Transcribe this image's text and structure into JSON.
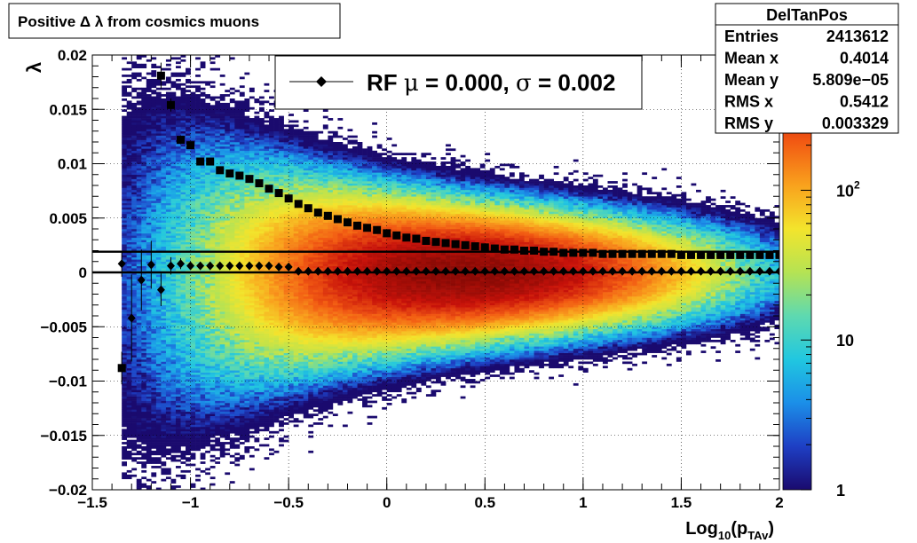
{
  "chart_data": {
    "type": "heatmap",
    "title": "Positive Δ λ from cosmics muons",
    "xlabel": "Log",
    "xlabel_sub1": "10",
    "xlabel_mid": "(p",
    "xlabel_sub2": "TAv",
    "xlabel_end": ")",
    "ylabel": "λ",
    "xlim": [
      -1.5,
      2.0
    ],
    "ylim": [
      -0.02,
      0.02
    ],
    "grid": true,
    "x_ticks": [
      {
        "v": -1.5,
        "label": "−1.5"
      },
      {
        "v": -1.0,
        "label": "−1"
      },
      {
        "v": -0.5,
        "label": "−0.5"
      },
      {
        "v": 0.0,
        "label": "0"
      },
      {
        "v": 0.5,
        "label": "0.5"
      },
      {
        "v": 1.0,
        "label": "1"
      },
      {
        "v": 1.5,
        "label": "1.5"
      },
      {
        "v": 2.0,
        "label": "2"
      }
    ],
    "y_ticks": [
      {
        "v": 0.02,
        "label": "0.02"
      },
      {
        "v": 0.015,
        "label": "0.015"
      },
      {
        "v": 0.01,
        "label": "0.01"
      },
      {
        "v": 0.005,
        "label": "0.005"
      },
      {
        "v": 0.0,
        "label": "0"
      },
      {
        "v": -0.005,
        "label": "−0.005"
      },
      {
        "v": -0.01,
        "label": "−0.01"
      },
      {
        "v": -0.015,
        "label": "−0.015"
      },
      {
        "v": -0.02,
        "label": "−0.02"
      }
    ],
    "z_scale": "log",
    "z_range": [
      1,
      800
    ],
    "z_ticks": [
      {
        "v": 1,
        "label": "1",
        "sup": ""
      },
      {
        "v": 10,
        "label": "10",
        "sup": ""
      },
      {
        "v": 100,
        "label": "10",
        "sup": "2"
      }
    ],
    "colormap": [
      "#1a0a6e",
      "#1e3fc4",
      "#1b8fe8",
      "#21c7e0",
      "#5ed9b0",
      "#b5e353",
      "#f3e42c",
      "#f9a21d",
      "#f25a13",
      "#c8120a",
      "#8a0a05"
    ],
    "hist_mean_x": 0.4014,
    "hist_sigma_x": 0.5412,
    "hist_sigma_y": 0.003329,
    "hist_x_min": -1.35,
    "lines_y": [
      0.0,
      0.0019
    ],
    "series": [
      {
        "name": "RF",
        "marker": "diamond",
        "x": [
          -1.35,
          -1.3,
          -1.25,
          -1.2,
          -1.15,
          -1.1,
          -1.05,
          -1.0,
          -0.95,
          -0.9,
          -0.85,
          -0.8,
          -0.75,
          -0.7,
          -0.65,
          -0.6,
          -0.55,
          -0.5,
          -0.45,
          -0.4,
          -0.35,
          -0.3,
          -0.25,
          -0.2,
          -0.15,
          -0.1,
          -0.05,
          0.0,
          0.05,
          0.1,
          0.15,
          0.2,
          0.25,
          0.3,
          0.35,
          0.4,
          0.45,
          0.5,
          0.55,
          0.6,
          0.65,
          0.7,
          0.75,
          0.8,
          0.85,
          0.9,
          0.95,
          1.0,
          1.05,
          1.1,
          1.15,
          1.2,
          1.25,
          1.3,
          1.35,
          1.4,
          1.45,
          1.5,
          1.55,
          1.6,
          1.65,
          1.7,
          1.75,
          1.8,
          1.85,
          1.9,
          1.95,
          2.0
        ],
        "y": [
          0.0008,
          -0.0042,
          -0.0007,
          0.0007,
          -0.0016,
          0.0006,
          0.0008,
          0.0006,
          0.0006,
          0.0006,
          0.0006,
          0.0006,
          0.0006,
          0.0006,
          0.0006,
          0.0006,
          0.0005,
          0.0005,
          0.0001,
          0.0001,
          0.0001,
          0.0001,
          0.0001,
          0.0001,
          0.0001,
          0.0001,
          0.0001,
          0.0001,
          0.0001,
          0.0001,
          0.0001,
          0.0001,
          0.0001,
          0.0001,
          0.0001,
          0.0001,
          0.0001,
          0.0001,
          0.0001,
          0.0001,
          0.0001,
          0.0001,
          0.0001,
          0.0001,
          0.0001,
          0.0001,
          0.0001,
          0.0001,
          0.0001,
          0.0001,
          0.0001,
          0.0001,
          0.0001,
          0.0001,
          0.0001,
          0.0001,
          0.0001,
          0.0001,
          0.0001,
          0.0001,
          0.0001,
          0.0001,
          0.0001,
          0.0001,
          0.0001,
          0.0001,
          0.0001,
          0.0001
        ],
        "yerr": [
          0.0012,
          0.004,
          0.0028,
          0.0022,
          0.0015,
          0.0008,
          0.0005,
          0.0003,
          0.0003,
          0.0002,
          0.0002,
          0.0002,
          0.0001,
          0.0001,
          0.0001,
          0.0001,
          0.0001,
          0.0001,
          0.0001,
          0.0001,
          0.0001,
          0.0001,
          0.0001,
          0.0001,
          0.0001,
          0.0001,
          0.0001,
          0.0001,
          0.0001,
          0.0001,
          0.0001,
          0.0001,
          0.0001,
          0.0001,
          0.0001,
          0.0001,
          0.0001,
          0.0001,
          0.0001,
          0.0001,
          0.0001,
          0.0001,
          0.0001,
          0.0001,
          0.0001,
          0.0001,
          0.0001,
          0.0001,
          0.0001,
          0.0001,
          0.0001,
          0.0001,
          0.0001,
          0.0001,
          0.0001,
          0.0001,
          0.0001,
          0.0001,
          0.0001,
          0.0001,
          0.0001,
          0.0001,
          0.0001,
          0.0001,
          0.0001,
          0.0001,
          0.0001,
          0.0001
        ]
      },
      {
        "name": "",
        "marker": "square",
        "x": [
          -1.35,
          -1.15,
          -1.1,
          -1.05,
          -1.0,
          -0.95,
          -0.9,
          -0.85,
          -0.8,
          -0.75,
          -0.7,
          -0.65,
          -0.6,
          -0.55,
          -0.5,
          -0.45,
          -0.4,
          -0.35,
          -0.3,
          -0.25,
          -0.2,
          -0.15,
          -0.1,
          -0.05,
          0.0,
          0.05,
          0.1,
          0.15,
          0.2,
          0.25,
          0.3,
          0.35,
          0.4,
          0.45,
          0.5,
          0.55,
          0.6,
          0.65,
          0.7,
          0.75,
          0.8,
          0.85,
          0.9,
          0.95,
          1.0,
          1.05,
          1.1,
          1.15,
          1.2,
          1.25,
          1.3,
          1.35,
          1.4,
          1.45,
          1.5,
          1.55,
          1.6,
          1.65,
          1.7,
          1.75,
          1.8,
          1.85,
          1.9,
          1.95,
          2.0
        ],
        "y": [
          -0.0088,
          0.0181,
          0.0154,
          0.0122,
          0.0117,
          0.0102,
          0.0102,
          0.0094,
          0.0091,
          0.0089,
          0.0086,
          0.0082,
          0.0077,
          0.0073,
          0.0068,
          0.0063,
          0.0059,
          0.0055,
          0.0052,
          0.0049,
          0.0046,
          0.0043,
          0.0041,
          0.0039,
          0.0036,
          0.0034,
          0.0032,
          0.0031,
          0.0029,
          0.0028,
          0.0027,
          0.0026,
          0.0025,
          0.0024,
          0.0023,
          0.0022,
          0.0021,
          0.0021,
          0.002,
          0.002,
          0.0019,
          0.0019,
          0.0018,
          0.0018,
          0.0018,
          0.0018,
          0.0017,
          0.0017,
          0.0017,
          0.0017,
          0.0017,
          0.0017,
          0.0017,
          0.0017,
          0.0016,
          0.0016,
          0.0016,
          0.0016,
          0.0016,
          0.0016,
          0.0016,
          0.0016,
          0.0016,
          0.0016,
          0.0016
        ],
        "yerr": [
          0.0015,
          0.0012,
          0.0006,
          0.0004,
          0.0003,
          0.0002,
          0.0002,
          0.0002,
          0.0001,
          0.0001,
          0.0001,
          0.0001,
          0.0001,
          0.0001,
          0.0001,
          0.0001,
          0.0001,
          0.0001,
          0.0001,
          0.0001,
          0.0001,
          0.0001,
          0.0001,
          0.0001,
          0.0001,
          0.0001,
          0.0001,
          0.0001,
          0.0001,
          0.0001,
          0.0001,
          0.0001,
          0.0001,
          0.0001,
          0.0001,
          0.0001,
          0.0001,
          0.0001,
          0.0001,
          0.0001,
          0.0001,
          0.0001,
          0.0001,
          0.0001,
          0.0001,
          0.0001,
          0.0001,
          0.0001,
          0.0001,
          0.0001,
          0.0001,
          0.0001,
          0.0001,
          0.0001,
          0.0001,
          0.0001,
          0.0001,
          0.0001,
          0.0001,
          0.0001,
          0.0001,
          0.0001,
          0.0001,
          0.0001,
          0.0001
        ]
      }
    ],
    "legend": {
      "label_name": "RF",
      "mu_sym": "μ",
      "eq1": " =  0.000, ",
      "sigma_sym": "σ",
      "eq2": " =   0.002"
    },
    "stats_box": {
      "title": "DelTanPos",
      "rows": [
        {
          "key": "Entries",
          "value": "2413612"
        },
        {
          "key": "Mean x",
          "value": "0.4014"
        },
        {
          "key": "Mean y",
          "value": "5.809e−05"
        },
        {
          "key": "RMS x",
          "value": "0.5412"
        },
        {
          "key": "RMS y",
          "value": "0.003329"
        }
      ]
    }
  }
}
